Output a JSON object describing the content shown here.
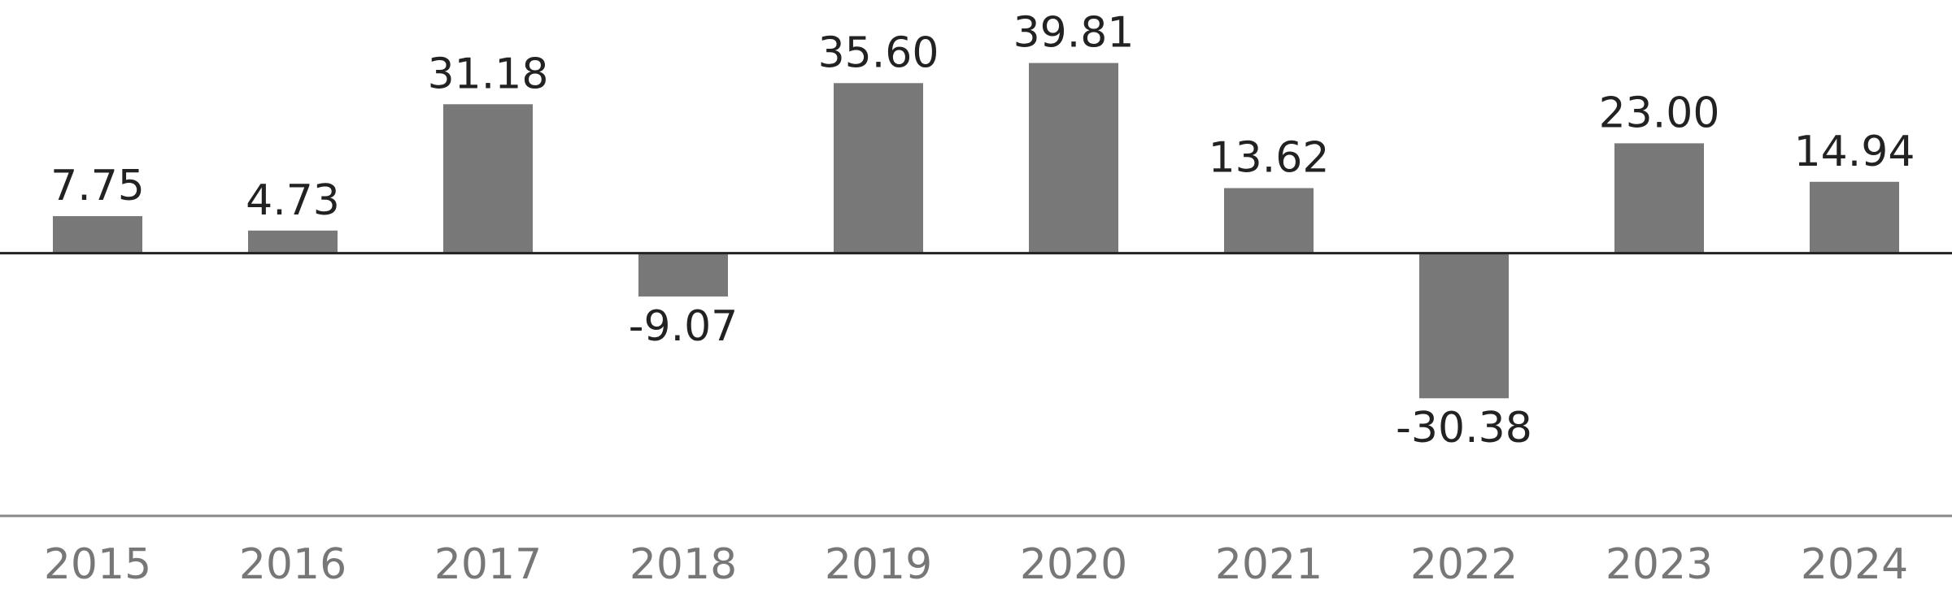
{
  "chart_data": {
    "type": "bar",
    "categories": [
      "2015",
      "2016",
      "2017",
      "2018",
      "2019",
      "2020",
      "2021",
      "2022",
      "2023",
      "2024"
    ],
    "values": [
      7.75,
      4.73,
      31.18,
      -9.07,
      35.6,
      39.81,
      13.62,
      -30.38,
      23.0,
      14.94
    ],
    "value_labels": [
      "7.75",
      "4.73",
      "31.18",
      "-9.07",
      "35.60",
      "39.81",
      "13.62",
      "-30.38",
      "23.00",
      "14.94"
    ],
    "color": "#787878",
    "ylim": [
      -55,
      53
    ]
  }
}
